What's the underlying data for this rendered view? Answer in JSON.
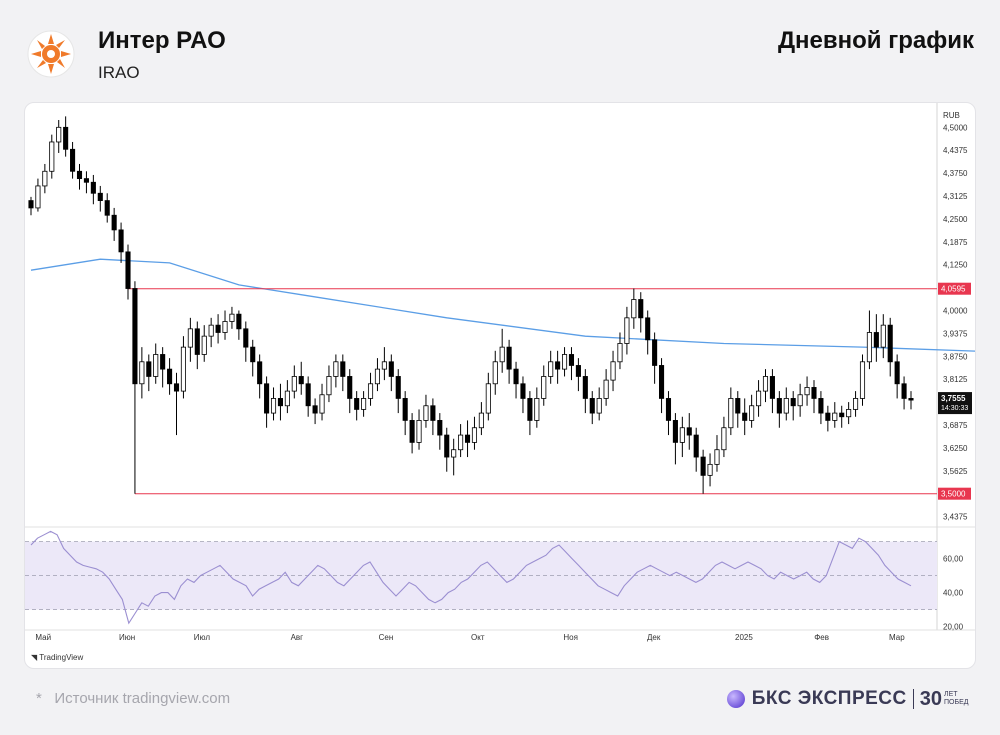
{
  "header": {
    "company": "Интер РАО",
    "ticker": "IRAO",
    "chart_kind": "Дневной график"
  },
  "footer": {
    "source": "Источник tradingview.com",
    "asterisk": "*",
    "brand": "БКС ЭКСПРЕСС",
    "brand_years": "30",
    "brand_years_caption": "ЛЕТ ПОБЕД"
  },
  "tv_label": "TradingView",
  "colors": {
    "up": "#ffffff",
    "down": "#000000",
    "ma": "#5b9ee6",
    "level": "#e8364f",
    "rsi": "#9b8fd1",
    "rsi_band": "#ece8f8"
  },
  "chart_data": [
    {
      "type": "candlestick",
      "currency_label": "RUB",
      "ylim": [
        3.42,
        4.55
      ],
      "y_ticks": [
        "4,5000",
        "4,4375",
        "4,3750",
        "4,3125",
        "4,2500",
        "4,1875",
        "4,1250",
        "4,0000",
        "3,9375",
        "3,8750",
        "3,8125",
        "3,6875",
        "3,6250",
        "3,5625",
        "3,4375"
      ],
      "x_labels": [
        "Май",
        "Июн",
        "Июл",
        "Авг",
        "Сен",
        "Окт",
        "Ноя",
        "Дек",
        "2025",
        "Фев",
        "Мар"
      ],
      "levels": [
        {
          "label": "4,0595",
          "value": 4.0595
        },
        {
          "label": "3,5000",
          "value": 3.5
        }
      ],
      "last_price": {
        "label": "3,7555",
        "value": 3.7555,
        "time": "14:30:33"
      },
      "moving_average": {
        "x": [
          0,
          10,
          20,
          30,
          40,
          60,
          80,
          100,
          120,
          150,
          180,
          200,
          215
        ],
        "y": [
          4.11,
          4.14,
          4.13,
          4.07,
          4.04,
          3.98,
          3.93,
          3.91,
          3.9,
          3.88,
          3.85,
          3.83,
          3.82
        ]
      },
      "candles": [
        [
          4.3,
          4.28,
          4.26,
          4.31
        ],
        [
          4.28,
          4.34,
          4.27,
          4.36
        ],
        [
          4.34,
          4.38,
          4.32,
          4.4
        ],
        [
          4.38,
          4.46,
          4.36,
          4.48
        ],
        [
          4.46,
          4.5,
          4.43,
          4.52
        ],
        [
          4.5,
          4.44,
          4.42,
          4.53
        ],
        [
          4.44,
          4.38,
          4.36,
          4.46
        ],
        [
          4.38,
          4.36,
          4.33,
          4.4
        ],
        [
          4.36,
          4.35,
          4.32,
          4.38
        ],
        [
          4.35,
          4.32,
          4.29,
          4.37
        ],
        [
          4.32,
          4.3,
          4.27,
          4.34
        ],
        [
          4.3,
          4.26,
          4.24,
          4.32
        ],
        [
          4.26,
          4.22,
          4.19,
          4.28
        ],
        [
          4.22,
          4.16,
          4.13,
          4.24
        ],
        [
          4.16,
          4.06,
          4.03,
          4.18
        ],
        [
          4.06,
          3.8,
          3.5,
          4.08
        ],
        [
          3.8,
          3.86,
          3.76,
          3.9
        ],
        [
          3.86,
          3.82,
          3.78,
          3.88
        ],
        [
          3.82,
          3.88,
          3.8,
          3.91
        ],
        [
          3.88,
          3.84,
          3.79,
          3.9
        ],
        [
          3.84,
          3.8,
          3.77,
          3.87
        ],
        [
          3.8,
          3.78,
          3.66,
          3.83
        ],
        [
          3.78,
          3.9,
          3.76,
          3.93
        ],
        [
          3.9,
          3.95,
          3.86,
          3.98
        ],
        [
          3.95,
          3.88,
          3.84,
          3.97
        ],
        [
          3.88,
          3.93,
          3.86,
          3.96
        ],
        [
          3.93,
          3.96,
          3.9,
          3.98
        ],
        [
          3.96,
          3.94,
          3.91,
          3.99
        ],
        [
          3.94,
          3.97,
          3.92,
          4.0
        ],
        [
          3.97,
          3.99,
          3.95,
          4.01
        ],
        [
          3.99,
          3.95,
          3.92,
          4.0
        ],
        [
          3.95,
          3.9,
          3.86,
          3.97
        ],
        [
          3.9,
          3.86,
          3.82,
          3.92
        ],
        [
          3.86,
          3.8,
          3.76,
          3.88
        ],
        [
          3.8,
          3.72,
          3.68,
          3.82
        ],
        [
          3.72,
          3.76,
          3.7,
          3.79
        ],
        [
          3.76,
          3.74,
          3.7,
          3.8
        ],
        [
          3.74,
          3.78,
          3.72,
          3.81
        ],
        [
          3.78,
          3.82,
          3.76,
          3.85
        ],
        [
          3.82,
          3.8,
          3.77,
          3.86
        ],
        [
          3.8,
          3.74,
          3.71,
          3.82
        ],
        [
          3.74,
          3.72,
          3.69,
          3.76
        ],
        [
          3.72,
          3.77,
          3.7,
          3.8
        ],
        [
          3.77,
          3.82,
          3.75,
          3.85
        ],
        [
          3.82,
          3.86,
          3.79,
          3.88
        ],
        [
          3.86,
          3.82,
          3.78,
          3.88
        ],
        [
          3.82,
          3.76,
          3.72,
          3.84
        ],
        [
          3.76,
          3.73,
          3.7,
          3.78
        ],
        [
          3.73,
          3.76,
          3.71,
          3.78
        ],
        [
          3.76,
          3.8,
          3.74,
          3.83
        ],
        [
          3.8,
          3.84,
          3.78,
          3.87
        ],
        [
          3.84,
          3.86,
          3.81,
          3.9
        ],
        [
          3.86,
          3.82,
          3.78,
          3.88
        ],
        [
          3.82,
          3.76,
          3.72,
          3.84
        ],
        [
          3.76,
          3.7,
          3.66,
          3.78
        ],
        [
          3.7,
          3.64,
          3.61,
          3.72
        ],
        [
          3.64,
          3.7,
          3.62,
          3.73
        ],
        [
          3.7,
          3.74,
          3.68,
          3.77
        ],
        [
          3.74,
          3.7,
          3.66,
          3.76
        ],
        [
          3.7,
          3.66,
          3.62,
          3.72
        ],
        [
          3.66,
          3.6,
          3.56,
          3.68
        ],
        [
          3.6,
          3.62,
          3.55,
          3.65
        ],
        [
          3.62,
          3.66,
          3.6,
          3.69
        ],
        [
          3.66,
          3.64,
          3.6,
          3.7
        ],
        [
          3.64,
          3.68,
          3.62,
          3.71
        ],
        [
          3.68,
          3.72,
          3.66,
          3.75
        ],
        [
          3.72,
          3.8,
          3.7,
          3.83
        ],
        [
          3.8,
          3.86,
          3.77,
          3.89
        ],
        [
          3.86,
          3.9,
          3.83,
          3.95
        ],
        [
          3.9,
          3.84,
          3.8,
          3.92
        ],
        [
          3.84,
          3.8,
          3.76,
          3.86
        ],
        [
          3.8,
          3.76,
          3.72,
          3.82
        ],
        [
          3.76,
          3.7,
          3.66,
          3.78
        ],
        [
          3.7,
          3.76,
          3.68,
          3.79
        ],
        [
          3.76,
          3.82,
          3.74,
          3.85
        ],
        [
          3.82,
          3.86,
          3.8,
          3.89
        ],
        [
          3.86,
          3.84,
          3.8,
          3.89
        ],
        [
          3.84,
          3.88,
          3.82,
          3.9
        ],
        [
          3.88,
          3.85,
          3.81,
          3.9
        ],
        [
          3.85,
          3.82,
          3.78,
          3.87
        ],
        [
          3.82,
          3.76,
          3.72,
          3.84
        ],
        [
          3.76,
          3.72,
          3.69,
          3.78
        ],
        [
          3.72,
          3.76,
          3.7,
          3.79
        ],
        [
          3.76,
          3.81,
          3.74,
          3.84
        ],
        [
          3.81,
          3.86,
          3.78,
          3.89
        ],
        [
          3.86,
          3.91,
          3.84,
          3.94
        ],
        [
          3.91,
          3.98,
          3.88,
          4.01
        ],
        [
          3.98,
          4.03,
          3.95,
          4.06
        ],
        [
          4.03,
          3.98,
          3.94,
          4.05
        ],
        [
          3.98,
          3.92,
          3.88,
          4.0
        ],
        [
          3.92,
          3.85,
          3.8,
          3.94
        ],
        [
          3.85,
          3.76,
          3.72,
          3.87
        ],
        [
          3.76,
          3.7,
          3.66,
          3.78
        ],
        [
          3.7,
          3.64,
          3.58,
          3.72
        ],
        [
          3.64,
          3.68,
          3.6,
          3.71
        ],
        [
          3.68,
          3.66,
          3.62,
          3.72
        ],
        [
          3.66,
          3.6,
          3.56,
          3.68
        ],
        [
          3.6,
          3.55,
          3.5,
          3.62
        ],
        [
          3.55,
          3.58,
          3.52,
          3.61
        ],
        [
          3.58,
          3.62,
          3.56,
          3.66
        ],
        [
          3.62,
          3.68,
          3.6,
          3.71
        ],
        [
          3.68,
          3.76,
          3.66,
          3.79
        ],
        [
          3.76,
          3.72,
          3.68,
          3.78
        ],
        [
          3.72,
          3.7,
          3.66,
          3.76
        ],
        [
          3.7,
          3.74,
          3.68,
          3.77
        ],
        [
          3.74,
          3.78,
          3.71,
          3.81
        ],
        [
          3.78,
          3.82,
          3.75,
          3.84
        ],
        [
          3.82,
          3.76,
          3.72,
          3.84
        ],
        [
          3.76,
          3.72,
          3.68,
          3.78
        ],
        [
          3.72,
          3.76,
          3.7,
          3.79
        ],
        [
          3.76,
          3.74,
          3.7,
          3.78
        ],
        [
          3.74,
          3.77,
          3.71,
          3.8
        ],
        [
          3.77,
          3.79,
          3.74,
          3.82
        ],
        [
          3.79,
          3.76,
          3.72,
          3.81
        ],
        [
          3.76,
          3.72,
          3.69,
          3.78
        ],
        [
          3.72,
          3.7,
          3.67,
          3.74
        ],
        [
          3.7,
          3.72,
          3.68,
          3.75
        ],
        [
          3.72,
          3.71,
          3.68,
          3.74
        ],
        [
          3.71,
          3.73,
          3.69,
          3.75
        ],
        [
          3.73,
          3.76,
          3.71,
          3.78
        ],
        [
          3.76,
          3.86,
          3.74,
          3.88
        ],
        [
          3.86,
          3.94,
          3.84,
          4.0
        ],
        [
          3.94,
          3.9,
          3.86,
          3.99
        ],
        [
          3.9,
          3.96,
          3.87,
          3.99
        ],
        [
          3.96,
          3.86,
          3.82,
          3.98
        ],
        [
          3.86,
          3.8,
          3.76,
          3.88
        ],
        [
          3.8,
          3.76,
          3.73,
          3.82
        ],
        [
          3.76,
          3.7555,
          3.73,
          3.78
        ]
      ]
    },
    {
      "type": "line",
      "indicator": "RSI",
      "ylim": [
        18,
        78
      ],
      "y_ticks": [
        "60,00",
        "40,00",
        "20,00"
      ],
      "band": [
        30,
        70
      ],
      "mid": 50,
      "values": [
        68,
        72,
        74,
        76,
        74,
        66,
        62,
        58,
        56,
        55,
        54,
        52,
        48,
        42,
        36,
        22,
        28,
        34,
        32,
        38,
        40,
        40,
        36,
        44,
        48,
        46,
        50,
        52,
        54,
        56,
        52,
        48,
        46,
        44,
        38,
        42,
        44,
        46,
        48,
        52,
        46,
        44,
        48,
        52,
        56,
        54,
        50,
        46,
        44,
        48,
        52,
        56,
        58,
        52,
        46,
        42,
        38,
        42,
        46,
        44,
        40,
        36,
        34,
        36,
        40,
        42,
        46,
        48,
        52,
        56,
        58,
        54,
        50,
        46,
        48,
        52,
        56,
        58,
        60,
        62,
        66,
        68,
        64,
        60,
        56,
        52,
        48,
        44,
        42,
        40,
        38,
        44,
        48,
        52,
        54,
        56,
        54,
        52,
        50,
        52,
        50,
        48,
        46,
        48,
        52,
        56,
        58,
        56,
        54,
        56,
        58,
        56,
        54,
        50,
        48,
        52,
        50,
        48,
        50,
        52,
        48,
        46,
        50,
        60,
        70,
        68,
        66,
        72,
        70,
        66,
        62,
        56,
        52,
        48,
        46,
        44
      ]
    }
  ]
}
